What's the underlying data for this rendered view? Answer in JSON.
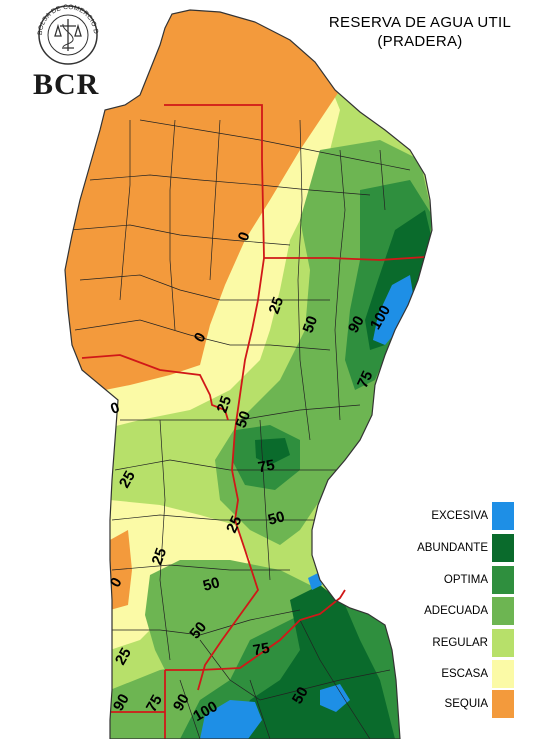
{
  "title": {
    "line1": "RESERVA DE AGUA UTIL",
    "line2": "(PRADERA)"
  },
  "logo": {
    "seal_text": "BOLSA DE COMERCIO DE ROSARIO",
    "acronym": "BCR"
  },
  "legend": [
    {
      "label": "EXCESIVA",
      "color": "#1e8fe6"
    },
    {
      "label": "ABUNDANTE",
      "color": "#0a6b2c"
    },
    {
      "label": "OPTIMA",
      "color": "#2f8f3e"
    },
    {
      "label": "ADECUADA",
      "color": "#6db552"
    },
    {
      "label": "REGULAR",
      "color": "#b7e06a"
    },
    {
      "label": "ESCASA",
      "color": "#fbfaa6"
    },
    {
      "label": "SEQUIA",
      "color": "#f39a3c"
    }
  ],
  "contour_labels": [
    "0",
    "25",
    "50",
    "90",
    "100",
    "0",
    "75",
    "0",
    "25",
    "50",
    "75",
    "25",
    "50",
    "25",
    "25",
    "50",
    "0",
    "50",
    "75",
    "25",
    "90",
    "50",
    "75",
    "90",
    "100"
  ]
}
